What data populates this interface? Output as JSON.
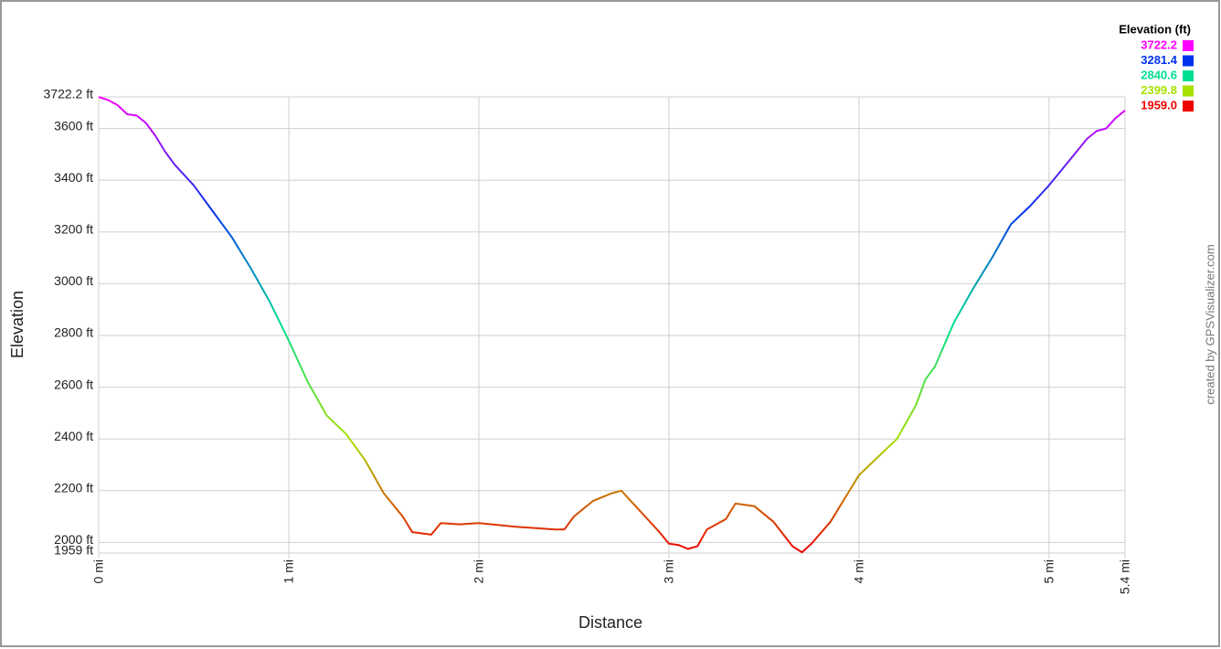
{
  "chart_data": {
    "type": "line",
    "x_label": "Distance",
    "y_label": "Elevation",
    "watermark": "created by GPSVisualizer.com",
    "x": [
      0,
      0.05,
      0.1,
      0.15,
      0.2,
      0.25,
      0.3,
      0.35,
      0.4,
      0.5,
      0.6,
      0.7,
      0.8,
      0.9,
      1.0,
      1.1,
      1.2,
      1.3,
      1.4,
      1.5,
      1.6,
      1.65,
      1.75,
      1.8,
      1.9,
      2.0,
      2.2,
      2.3,
      2.4,
      2.45,
      2.5,
      2.6,
      2.7,
      2.75,
      2.85,
      2.95,
      3.0,
      3.05,
      3.1,
      3.15,
      3.2,
      3.3,
      3.35,
      3.45,
      3.55,
      3.65,
      3.7,
      3.75,
      3.85,
      3.95,
      4.0,
      4.1,
      4.2,
      4.3,
      4.35,
      4.4,
      4.5,
      4.6,
      4.7,
      4.8,
      4.9,
      5.0,
      5.1,
      5.2,
      5.25,
      5.3,
      5.35,
      5.4
    ],
    "series": [
      {
        "name": "Elevation (ft)",
        "values": [
          3722,
          3710,
          3690,
          3655,
          3650,
          3620,
          3570,
          3510,
          3460,
          3380,
          3280,
          3180,
          3060,
          2930,
          2780,
          2620,
          2490,
          2420,
          2320,
          2190,
          2100,
          2040,
          2030,
          2075,
          2070,
          2075,
          2060,
          2055,
          2050,
          2050,
          2100,
          2160,
          2190,
          2200,
          2120,
          2040,
          1995,
          1990,
          1975,
          1985,
          2050,
          2090,
          2150,
          2140,
          2080,
          1985,
          1962,
          1995,
          2080,
          2200,
          2260,
          2330,
          2400,
          2530,
          2630,
          2680,
          2850,
          2980,
          3100,
          3230,
          3300,
          3380,
          3470,
          3560,
          3590,
          3600,
          3640,
          3670
        ]
      }
    ],
    "color_scale": {
      "title": "Elevation (ft)",
      "stops": [
        {
          "value": 3722.2,
          "color": "#ff00ff"
        },
        {
          "value": 3281.4,
          "color": "#0033ee"
        },
        {
          "value": 2840.6,
          "color": "#00e090"
        },
        {
          "value": 2399.8,
          "color": "#a8e000"
        },
        {
          "value": 1959,
          "label": "1959.0",
          "color": "#ee0000"
        }
      ]
    },
    "xlim": [
      0,
      5.4
    ],
    "xticks": [
      {
        "value": 0,
        "label": "0 mi"
      },
      {
        "value": 1,
        "label": "1 mi"
      },
      {
        "value": 2,
        "label": "2 mi"
      },
      {
        "value": 3,
        "label": "3 mi"
      },
      {
        "value": 4,
        "label": "4 mi"
      },
      {
        "value": 5,
        "label": "5 mi"
      },
      {
        "value": 5.4,
        "label": "5.4 mi"
      }
    ],
    "ylim": [
      1959,
      3722.2
    ],
    "yticks": [
      {
        "value": 1959,
        "label": "1959 ft"
      },
      {
        "value": 2000,
        "label": "2000 ft"
      },
      {
        "value": 2200,
        "label": "2200 ft"
      },
      {
        "value": 2400,
        "label": "2400 ft"
      },
      {
        "value": 2600,
        "label": "2600 ft"
      },
      {
        "value": 2800,
        "label": "2800 ft"
      },
      {
        "value": 3000,
        "label": "3000 ft"
      },
      {
        "value": 3200,
        "label": "3200 ft"
      },
      {
        "value": 3400,
        "label": "3400 ft"
      },
      {
        "value": 3600,
        "label": "3600 ft"
      },
      {
        "value": 3722.2,
        "label": "3722.2 ft"
      }
    ],
    "grid": true
  }
}
